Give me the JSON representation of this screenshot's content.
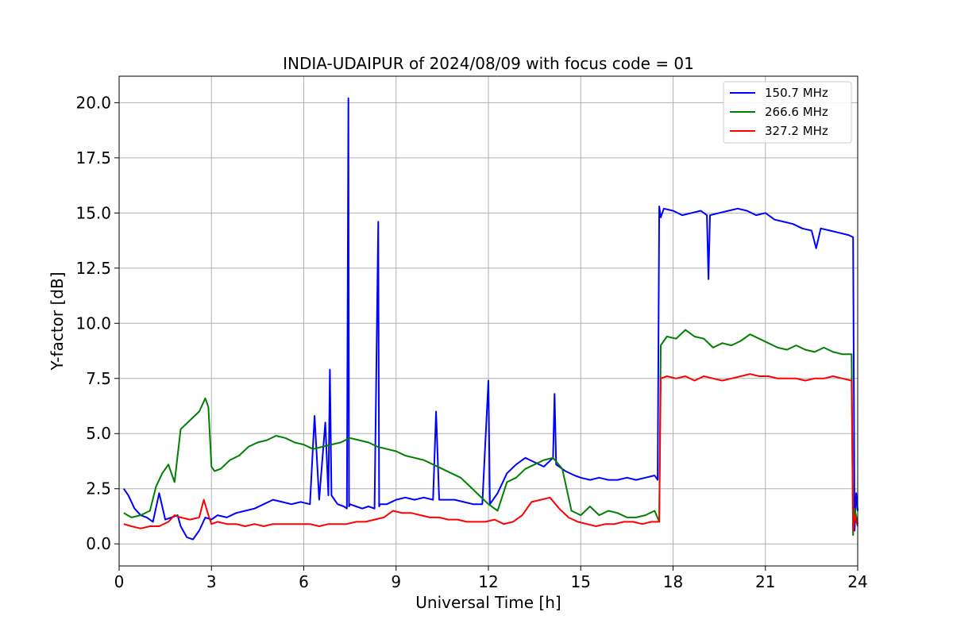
{
  "chart_data": {
    "type": "line",
    "title": "INDIA-UDAIPUR of 2024/08/09 with focus code = 01",
    "xlabel": "Universal Time [h]",
    "ylabel": "Y-factor [dB]",
    "xlim": [
      0,
      24
    ],
    "ylim": [
      -1.0,
      21.2
    ],
    "xticks": [
      0,
      3,
      6,
      9,
      12,
      15,
      18,
      21,
      24
    ],
    "xtick_labels": [
      "0",
      "3",
      "6",
      "9",
      "12",
      "15",
      "18",
      "21",
      "24"
    ],
    "yticks": [
      0.0,
      2.5,
      5.0,
      7.5,
      10.0,
      12.5,
      15.0,
      17.5,
      20.0
    ],
    "ytick_labels": [
      "0.0",
      "2.5",
      "5.0",
      "7.5",
      "10.0",
      "12.5",
      "15.0",
      "17.5",
      "20.0"
    ],
    "grid": true,
    "legend_position": "top-right",
    "series": [
      {
        "name": "150.7 MHz",
        "color": "#0000ff",
        "x": [
          0.15,
          0.3,
          0.5,
          0.7,
          0.9,
          1.1,
          1.3,
          1.5,
          1.7,
          1.9,
          2.0,
          2.2,
          2.4,
          2.6,
          2.8,
          3.0,
          3.2,
          3.5,
          3.8,
          4.1,
          4.4,
          4.7,
          5.0,
          5.3,
          5.6,
          5.9,
          6.2,
          6.35,
          6.5,
          6.7,
          6.8,
          6.85,
          6.9,
          7.1,
          7.3,
          7.4,
          7.45,
          7.47,
          7.5,
          7.7,
          7.9,
          8.1,
          8.3,
          8.42,
          8.45,
          8.48,
          8.7,
          9.0,
          9.3,
          9.6,
          9.9,
          10.2,
          10.3,
          10.4,
          10.6,
          10.9,
          11.2,
          11.5,
          11.8,
          12.0,
          12.05,
          12.3,
          12.6,
          12.9,
          13.2,
          13.5,
          13.8,
          14.1,
          14.15,
          14.2,
          14.5,
          14.8,
          15.0,
          15.3,
          15.6,
          15.9,
          16.2,
          16.5,
          16.8,
          17.1,
          17.4,
          17.5,
          17.55,
          17.6,
          17.7,
          18.0,
          18.3,
          18.6,
          18.9,
          19.1,
          19.15,
          19.2,
          19.5,
          19.8,
          20.1,
          20.4,
          20.7,
          21.0,
          21.3,
          21.6,
          21.9,
          22.2,
          22.5,
          22.65,
          22.8,
          23.1,
          23.4,
          23.7,
          23.85,
          23.9,
          23.95,
          24.0
        ],
        "y": [
          2.5,
          2.2,
          1.6,
          1.3,
          1.2,
          1.0,
          2.3,
          1.1,
          1.2,
          1.3,
          0.8,
          0.3,
          0.2,
          0.6,
          1.2,
          1.1,
          1.3,
          1.2,
          1.4,
          1.5,
          1.6,
          1.8,
          2.0,
          1.9,
          1.8,
          1.9,
          1.8,
          5.8,
          2.0,
          5.5,
          2.2,
          7.9,
          2.2,
          1.8,
          1.7,
          1.6,
          20.2,
          1.7,
          1.8,
          1.7,
          1.6,
          1.7,
          1.6,
          14.6,
          1.7,
          1.8,
          1.8,
          2.0,
          2.1,
          2.0,
          2.1,
          2.0,
          6.0,
          2.0,
          2.0,
          2.0,
          1.9,
          1.8,
          1.8,
          7.4,
          1.8,
          2.3,
          3.2,
          3.6,
          3.9,
          3.7,
          3.5,
          3.9,
          6.8,
          3.6,
          3.3,
          3.1,
          3.0,
          2.9,
          3.0,
          2.9,
          2.9,
          3.0,
          2.9,
          3.0,
          3.1,
          2.9,
          15.3,
          14.8,
          15.2,
          15.1,
          14.9,
          15.0,
          15.1,
          14.9,
          12.0,
          14.9,
          15.0,
          15.1,
          15.2,
          15.1,
          14.9,
          15.0,
          14.7,
          14.6,
          14.5,
          14.3,
          14.2,
          13.4,
          14.3,
          14.2,
          14.1,
          14.0,
          13.9,
          0.6,
          2.3,
          1.5
        ]
      },
      {
        "name": "266.6 MHz",
        "color": "#008000",
        "x": [
          0.15,
          0.4,
          0.7,
          1.0,
          1.2,
          1.4,
          1.6,
          1.8,
          2.0,
          2.3,
          2.6,
          2.8,
          2.9,
          3.0,
          3.1,
          3.3,
          3.6,
          3.9,
          4.2,
          4.5,
          4.8,
          5.1,
          5.4,
          5.7,
          6.0,
          6.3,
          6.6,
          6.9,
          7.2,
          7.5,
          7.8,
          8.1,
          8.4,
          8.7,
          9.0,
          9.3,
          9.6,
          9.9,
          10.2,
          10.5,
          10.8,
          11.1,
          11.4,
          11.7,
          12.0,
          12.3,
          12.6,
          12.9,
          13.2,
          13.5,
          13.8,
          14.1,
          14.4,
          14.7,
          15.0,
          15.3,
          15.6,
          15.9,
          16.2,
          16.5,
          16.8,
          17.1,
          17.4,
          17.55,
          17.6,
          17.8,
          18.1,
          18.4,
          18.7,
          19.0,
          19.3,
          19.6,
          19.9,
          20.2,
          20.5,
          20.8,
          21.1,
          21.4,
          21.7,
          22.0,
          22.3,
          22.6,
          22.9,
          23.2,
          23.5,
          23.8,
          23.85,
          23.9,
          24.0
        ],
        "y": [
          1.4,
          1.2,
          1.3,
          1.5,
          2.6,
          3.2,
          3.6,
          2.8,
          5.2,
          5.6,
          6.0,
          6.6,
          6.2,
          3.5,
          3.3,
          3.4,
          3.8,
          4.0,
          4.4,
          4.6,
          4.7,
          4.9,
          4.8,
          4.6,
          4.5,
          4.3,
          4.4,
          4.5,
          4.6,
          4.8,
          4.7,
          4.6,
          4.4,
          4.3,
          4.2,
          4.0,
          3.9,
          3.8,
          3.6,
          3.4,
          3.2,
          3.0,
          2.6,
          2.2,
          1.8,
          1.5,
          2.8,
          3.0,
          3.4,
          3.6,
          3.8,
          3.9,
          3.4,
          1.5,
          1.3,
          1.7,
          1.3,
          1.5,
          1.4,
          1.2,
          1.2,
          1.3,
          1.5,
          1.0,
          9.0,
          9.4,
          9.3,
          9.7,
          9.4,
          9.3,
          8.9,
          9.1,
          9.0,
          9.2,
          9.5,
          9.3,
          9.1,
          8.9,
          8.8,
          9.0,
          8.8,
          8.7,
          8.9,
          8.7,
          8.6,
          8.6,
          0.4,
          1.6,
          0.9
        ]
      },
      {
        "name": "327.2 MHz",
        "color": "#ff0000",
        "x": [
          0.15,
          0.4,
          0.7,
          1.0,
          1.3,
          1.6,
          1.8,
          2.0,
          2.3,
          2.6,
          2.75,
          2.9,
          3.0,
          3.2,
          3.5,
          3.8,
          4.1,
          4.4,
          4.7,
          5.0,
          5.3,
          5.6,
          5.9,
          6.2,
          6.5,
          6.8,
          7.1,
          7.4,
          7.7,
          8.0,
          8.3,
          8.6,
          8.9,
          9.2,
          9.5,
          9.8,
          10.1,
          10.4,
          10.7,
          11.0,
          11.3,
          11.6,
          11.9,
          12.2,
          12.5,
          12.8,
          13.1,
          13.4,
          13.7,
          14.0,
          14.3,
          14.6,
          14.9,
          15.2,
          15.5,
          15.8,
          16.1,
          16.4,
          16.7,
          17.0,
          17.3,
          17.55,
          17.6,
          17.8,
          18.1,
          18.4,
          18.7,
          19.0,
          19.3,
          19.6,
          19.9,
          20.2,
          20.5,
          20.8,
          21.1,
          21.4,
          21.7,
          22.0,
          22.3,
          22.6,
          22.9,
          23.2,
          23.5,
          23.8,
          23.85,
          23.9,
          24.0
        ],
        "y": [
          0.9,
          0.8,
          0.7,
          0.8,
          0.8,
          1.0,
          1.3,
          1.2,
          1.1,
          1.2,
          2.0,
          1.3,
          0.9,
          1.0,
          0.9,
          0.9,
          0.8,
          0.9,
          0.8,
          0.9,
          0.9,
          0.9,
          0.9,
          0.9,
          0.8,
          0.9,
          0.9,
          0.9,
          1.0,
          1.0,
          1.1,
          1.2,
          1.5,
          1.4,
          1.4,
          1.3,
          1.2,
          1.2,
          1.1,
          1.1,
          1.0,
          1.0,
          1.0,
          1.1,
          0.9,
          1.0,
          1.3,
          1.9,
          2.0,
          2.1,
          1.6,
          1.2,
          1.0,
          0.9,
          0.8,
          0.9,
          0.9,
          1.0,
          1.0,
          0.9,
          1.0,
          1.0,
          7.5,
          7.6,
          7.5,
          7.6,
          7.4,
          7.6,
          7.5,
          7.4,
          7.5,
          7.6,
          7.7,
          7.6,
          7.6,
          7.5,
          7.5,
          7.5,
          7.4,
          7.5,
          7.5,
          7.6,
          7.5,
          7.4,
          0.6,
          1.3,
          0.8
        ]
      }
    ]
  }
}
